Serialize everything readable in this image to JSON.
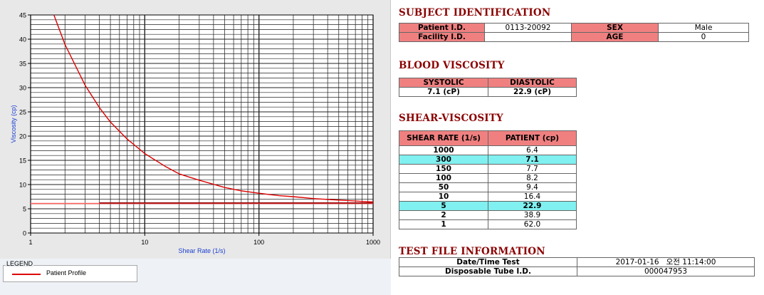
{
  "chart_data": {
    "type": "line",
    "xlabel": "Shear Rate (1/s)",
    "ylabel": "Viscosity (cp)",
    "x_scale": "log",
    "xlim": [
      1,
      1000
    ],
    "ylim": [
      0,
      45
    ],
    "x_ticks": [
      1,
      10,
      100,
      1000
    ],
    "y_ticks": [
      0,
      5,
      10,
      15,
      20,
      25,
      30,
      35,
      40,
      45
    ],
    "grid": true,
    "legend_position": "bottom-left",
    "series": [
      {
        "name": "Patient Profile",
        "color": "#dd0000",
        "x": [
          1.6,
          2,
          3,
          4,
          5,
          7,
          10,
          15,
          20,
          30,
          50,
          70,
          100,
          150,
          200,
          300,
          500,
          700,
          1000
        ],
        "y": [
          45,
          38.9,
          30.5,
          25.9,
          22.9,
          19.4,
          16.4,
          13.8,
          12.2,
          10.9,
          9.4,
          8.7,
          8.2,
          7.7,
          7.5,
          7.1,
          6.8,
          6.6,
          6.4
        ]
      }
    ],
    "reference_lines": [
      {
        "y": 6.1,
        "color": "#ff6666",
        "x": [
          1,
          1000
        ]
      },
      {
        "y": 6.2,
        "color": "#990000",
        "x": [
          4,
          1000
        ]
      }
    ]
  },
  "legend": {
    "title": "LEGEND",
    "label": "Patient Profile",
    "color": "#dd0000"
  },
  "subject": {
    "title": "SUBJECT IDENTIFICATION",
    "patient_id_label": "Patient I.D.",
    "patient_id": "0113-20092",
    "sex_label": "SEX",
    "sex": "Male",
    "facility_label": "Facility I.D.",
    "facility": "",
    "age_label": "AGE",
    "age": "0"
  },
  "blood": {
    "title": "BLOOD VISCOSITY",
    "systolic_label": "SYSTOLIC",
    "diastolic_label": "DIASTOLIC",
    "systolic": "7.1 (cP)",
    "diastolic": "22.9 (cP)"
  },
  "shear": {
    "title": "SHEAR-VISCOSITY",
    "col1": "SHEAR RATE (1/s)",
    "col2": "PATIENT (cp)",
    "rows": [
      {
        "rate": "1000",
        "val": "6.4"
      },
      {
        "rate": "300",
        "val": "7.1"
      },
      {
        "rate": "150",
        "val": "7.7"
      },
      {
        "rate": "100",
        "val": "8.2"
      },
      {
        "rate": "50",
        "val": "9.4"
      },
      {
        "rate": "10",
        "val": "16.4"
      },
      {
        "rate": "5",
        "val": "22.9"
      },
      {
        "rate": "2",
        "val": "38.9"
      },
      {
        "rate": "1",
        "val": "62.0"
      }
    ]
  },
  "testfile": {
    "title": "TEST FILE INFORMATION",
    "date_label": "Date/Time Test",
    "date": "2017-01-16   오전 11:14:00",
    "tube_label": "Disposable Tube I.D.",
    "tube": "000047953"
  },
  "colors": {
    "header": "#f08080",
    "highlight": "#80f0f0",
    "title": "#8b0000"
  }
}
